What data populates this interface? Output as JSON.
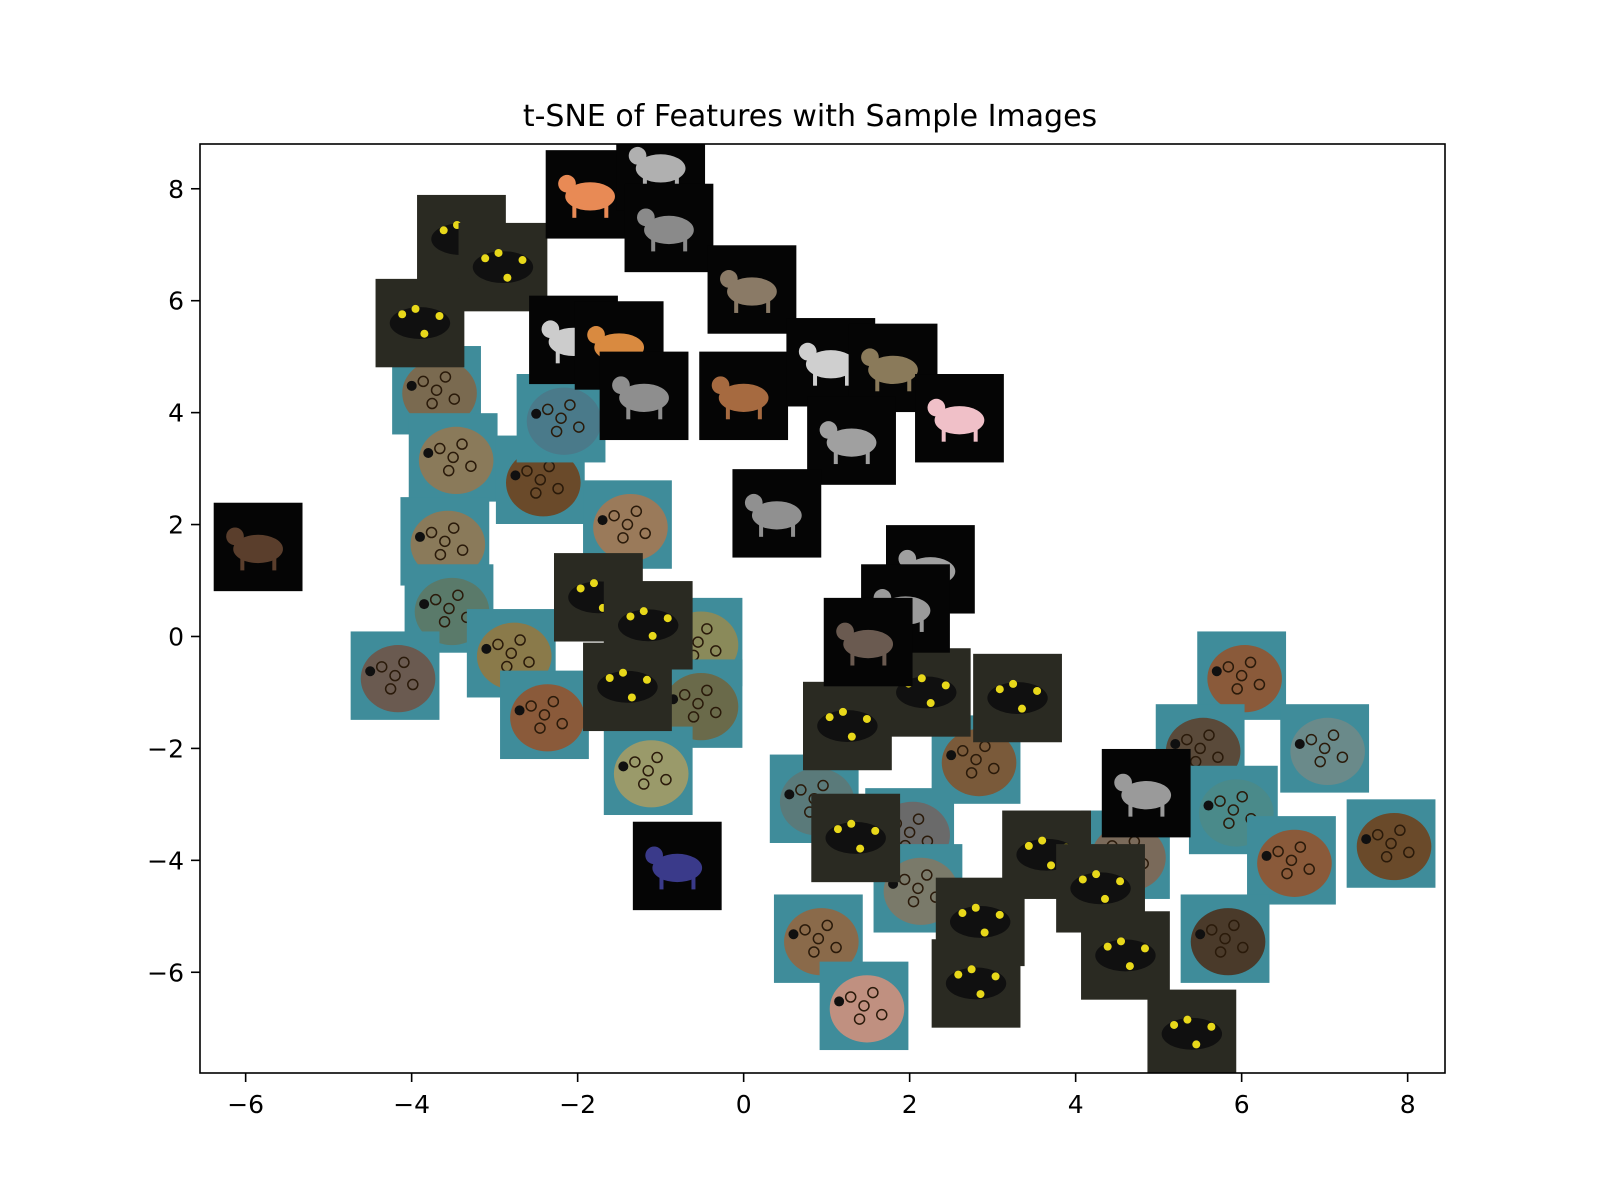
{
  "chart_data": {
    "type": "scatter",
    "title": "t-SNE of Features with Sample Images",
    "xlabel": "",
    "ylabel": "",
    "xlim": [
      -6.55,
      8.45
    ],
    "ylim": [
      -7.8,
      8.8
    ],
    "xticks": [
      -6,
      -4,
      -2,
      0,
      2,
      4,
      6,
      8
    ],
    "yticks": [
      -6,
      -4,
      -2,
      0,
      2,
      4,
      6,
      8
    ],
    "xtick_labels": [
      "−6",
      "−4",
      "−2",
      "0",
      "2",
      "4",
      "6",
      "8"
    ],
    "ytick_labels": [
      "−6",
      "−4",
      "−2",
      "0",
      "2",
      "4",
      "6",
      "8"
    ],
    "grid": false,
    "thumbnail_size": [
      1.07,
      1.58
    ],
    "marker_kinds": {
      "cat": "animal silhouette on black background",
      "salamander": "black salamander with yellow spots",
      "turtle": "sea turtle head close-up"
    },
    "colors": {
      "background_black": "#050505",
      "turtle_brown": "#7a5a38",
      "turtle_water": "#3f8c9a",
      "salamander_yellow": "#e8d81a",
      "cat_orange": "#e88a55",
      "cat_gray": "#8a8a8a"
    },
    "points": [
      {
        "x": -5.85,
        "y": 1.6,
        "kind": "cat",
        "color": "#5a3e2c"
      },
      {
        "x": -1.85,
        "y": 7.9,
        "kind": "cat",
        "color": "#e88a55"
      },
      {
        "x": -1.0,
        "y": 8.4,
        "kind": "cat",
        "color": "#b0b0b0"
      },
      {
        "x": -0.9,
        "y": 7.3,
        "kind": "cat",
        "color": "#8a8a8a"
      },
      {
        "x": 0.1,
        "y": 6.2,
        "kind": "cat",
        "color": "#8a7a66"
      },
      {
        "x": -2.05,
        "y": 5.3,
        "kind": "cat",
        "color": "#cccccc"
      },
      {
        "x": -1.5,
        "y": 5.2,
        "kind": "cat",
        "color": "#d98a40"
      },
      {
        "x": -1.2,
        "y": 4.3,
        "kind": "cat",
        "color": "#8e8e8e"
      },
      {
        "x": 0.0,
        "y": 4.3,
        "kind": "cat",
        "color": "#a66a40"
      },
      {
        "x": 1.05,
        "y": 4.9,
        "kind": "cat",
        "color": "#cfcfcf"
      },
      {
        "x": 1.8,
        "y": 4.8,
        "kind": "cat",
        "color": "#8a7a5a"
      },
      {
        "x": 2.6,
        "y": 3.9,
        "kind": "cat",
        "color": "#f0c0c8"
      },
      {
        "x": 1.3,
        "y": 3.5,
        "kind": "cat",
        "color": "#a0a0a0"
      },
      {
        "x": 0.4,
        "y": 2.2,
        "kind": "cat",
        "color": "#909090"
      },
      {
        "x": 2.25,
        "y": 1.2,
        "kind": "cat",
        "color": "#a0a0a0"
      },
      {
        "x": 1.95,
        "y": 0.5,
        "kind": "cat",
        "color": "#9a9a9a"
      },
      {
        "x": 1.5,
        "y": -0.1,
        "kind": "cat",
        "color": "#6a5a50"
      },
      {
        "x": 4.85,
        "y": -2.8,
        "kind": "cat",
        "color": "#9a9a9a"
      },
      {
        "x": -0.8,
        "y": -4.1,
        "kind": "cat",
        "color": "#3a3a8a"
      },
      {
        "x": -3.4,
        "y": 7.1,
        "kind": "salamander",
        "color": "#e8d81a"
      },
      {
        "x": -2.9,
        "y": 6.6,
        "kind": "salamander",
        "color": "#e8d81a"
      },
      {
        "x": -3.9,
        "y": 5.6,
        "kind": "salamander",
        "color": "#e8d81a"
      },
      {
        "x": -1.75,
        "y": 0.7,
        "kind": "salamander",
        "color": "#e8d81a"
      },
      {
        "x": -1.15,
        "y": 0.2,
        "kind": "salamander",
        "color": "#e8d81a"
      },
      {
        "x": -1.4,
        "y": -0.9,
        "kind": "salamander",
        "color": "#e8d81a"
      },
      {
        "x": 1.25,
        "y": -1.6,
        "kind": "salamander",
        "color": "#e8d81a"
      },
      {
        "x": 2.2,
        "y": -1.0,
        "kind": "salamander",
        "color": "#e8d81a"
      },
      {
        "x": 3.3,
        "y": -1.1,
        "kind": "salamander",
        "color": "#e8d81a"
      },
      {
        "x": 1.35,
        "y": -3.6,
        "kind": "salamander",
        "color": "#e8d81a"
      },
      {
        "x": 3.65,
        "y": -3.9,
        "kind": "salamander",
        "color": "#e8d81a"
      },
      {
        "x": 4.3,
        "y": -4.5,
        "kind": "salamander",
        "color": "#e8d81a"
      },
      {
        "x": 2.85,
        "y": -5.1,
        "kind": "salamander",
        "color": "#e8d81a"
      },
      {
        "x": 2.8,
        "y": -6.2,
        "kind": "salamander",
        "color": "#e8d81a"
      },
      {
        "x": 4.6,
        "y": -5.7,
        "kind": "salamander",
        "color": "#e8d81a"
      },
      {
        "x": 5.4,
        "y": -7.1,
        "kind": "salamander",
        "color": "#e8d81a"
      },
      {
        "x": -3.7,
        "y": 4.4,
        "kind": "turtle",
        "color": "#7a6a50"
      },
      {
        "x": -3.5,
        "y": 3.2,
        "kind": "turtle",
        "color": "#8a7a5a"
      },
      {
        "x": -2.45,
        "y": 2.8,
        "kind": "turtle",
        "color": "#6a4a2a"
      },
      {
        "x": -2.2,
        "y": 3.9,
        "kind": "turtle",
        "color": "#4a7a8a"
      },
      {
        "x": -3.6,
        "y": 1.7,
        "kind": "turtle",
        "color": "#8a7a5a"
      },
      {
        "x": -3.55,
        "y": 0.5,
        "kind": "turtle",
        "color": "#5a7a6a"
      },
      {
        "x": -4.2,
        "y": -0.7,
        "kind": "turtle",
        "color": "#6a5a50"
      },
      {
        "x": -2.8,
        "y": -0.3,
        "kind": "turtle",
        "color": "#8a7a4a"
      },
      {
        "x": -2.4,
        "y": -1.4,
        "kind": "turtle",
        "color": "#8a5a3a"
      },
      {
        "x": -1.4,
        "y": 2.0,
        "kind": "turtle",
        "color": "#9a7a5a"
      },
      {
        "x": -0.55,
        "y": -0.1,
        "kind": "turtle",
        "color": "#8a8a5a"
      },
      {
        "x": -0.55,
        "y": -1.2,
        "kind": "turtle",
        "color": "#6a6a4a"
      },
      {
        "x": -1.15,
        "y": -2.4,
        "kind": "turtle",
        "color": "#9a9a6a"
      },
      {
        "x": 0.85,
        "y": -2.9,
        "kind": "turtle",
        "color": "#5a7a7a"
      },
      {
        "x": 2.8,
        "y": -2.2,
        "kind": "turtle",
        "color": "#7a5a3a"
      },
      {
        "x": 2.0,
        "y": -3.5,
        "kind": "turtle",
        "color": "#6a6a6a"
      },
      {
        "x": 2.1,
        "y": -4.5,
        "kind": "turtle",
        "color": "#7a7a6a"
      },
      {
        "x": 0.9,
        "y": -5.4,
        "kind": "turtle",
        "color": "#8a6a4a"
      },
      {
        "x": 1.45,
        "y": -6.6,
        "kind": "turtle",
        "color": "#c09080"
      },
      {
        "x": 6.0,
        "y": -0.7,
        "kind": "turtle",
        "color": "#8a5a3a"
      },
      {
        "x": 5.5,
        "y": -2.0,
        "kind": "turtle",
        "color": "#5a4a3a"
      },
      {
        "x": 7.0,
        "y": -2.0,
        "kind": "turtle",
        "color": "#6a8a8a"
      },
      {
        "x": 5.9,
        "y": -3.1,
        "kind": "turtle",
        "color": "#4a8a8a"
      },
      {
        "x": 7.8,
        "y": -3.7,
        "kind": "turtle",
        "color": "#6a4a2a"
      },
      {
        "x": 6.6,
        "y": -4.0,
        "kind": "turtle",
        "color": "#8a5a3a"
      },
      {
        "x": 5.8,
        "y": -5.4,
        "kind": "turtle",
        "color": "#4a3a2a"
      },
      {
        "x": 4.6,
        "y": -3.9,
        "kind": "turtle",
        "color": "#7a6a5a"
      }
    ]
  }
}
